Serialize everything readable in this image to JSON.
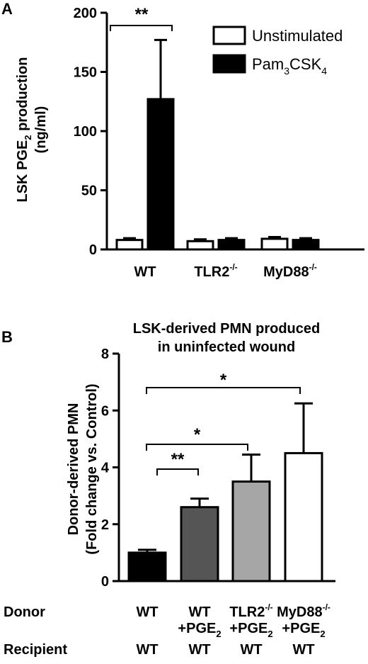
{
  "chart_data": [
    {
      "panel": "A",
      "type": "bar",
      "title": "",
      "ylabel": "LSK PGE₂ production",
      "ylabel_unit": "(ng/ml)",
      "ylim": [
        0,
        200
      ],
      "yticks": [
        "0",
        "50",
        "100",
        "150",
        "200"
      ],
      "categories": [
        {
          "main": "WT",
          "sup": ""
        },
        {
          "main": "TLR2",
          "sup": "-/-"
        },
        {
          "main": "MyD88",
          "sup": "-/-"
        }
      ],
      "series": [
        {
          "name": "Unstimulated",
          "color": "#ffffff",
          "values": [
            8,
            7,
            9
          ],
          "errors": [
            1.5,
            1.5,
            1.5
          ]
        },
        {
          "name": "Pam₃CSK₄",
          "color": "#000000",
          "values": [
            127,
            8,
            8
          ],
          "errors": [
            50,
            1.5,
            1.5
          ]
        }
      ],
      "legend_position": "top-right",
      "significance": [
        {
          "label": "**",
          "between": "WT Unstimulated vs WT Pam₃CSK₄"
        }
      ]
    },
    {
      "panel": "B",
      "type": "bar",
      "title": "LSK-derived PMN produced",
      "subtitle": "in uninfected wound",
      "ylabel": "Donor-derived PMN",
      "ylabel2": "(Fold change vs. Control)",
      "ylim": [
        0,
        8
      ],
      "yticks": [
        "0",
        "2",
        "4",
        "6",
        "8"
      ],
      "bars": [
        {
          "donor": "WT",
          "donor_sup": "",
          "donor2": "",
          "recipient": "WT",
          "value": 1.0,
          "error": 0.1,
          "color": "#000000"
        },
        {
          "donor": "WT",
          "donor_sup": "",
          "donor2": "+PGE₂",
          "recipient": "WT",
          "value": 2.6,
          "error": 0.3,
          "color": "#555555"
        },
        {
          "donor": "TLR2",
          "donor_sup": "-/-",
          "donor2": "+PGE₂",
          "recipient": "WT",
          "value": 3.5,
          "error": 0.95,
          "color": "#a6a6a6"
        },
        {
          "donor": "MyD88",
          "donor_sup": "-/-",
          "donor2": "+PGE₂",
          "recipient": "WT",
          "value": 4.5,
          "error": 1.75,
          "color": "#ffffff"
        }
      ],
      "row_labels": {
        "donor": "Donor",
        "recipient": "Recipient"
      },
      "significance": [
        {
          "label": "**",
          "from": 0,
          "to": 1
        },
        {
          "label": "*",
          "from": 0,
          "to": 2
        },
        {
          "label": "*",
          "from": 0,
          "to": 3
        }
      ]
    }
  ],
  "panel_labels": {
    "a": "A",
    "b": "B"
  }
}
